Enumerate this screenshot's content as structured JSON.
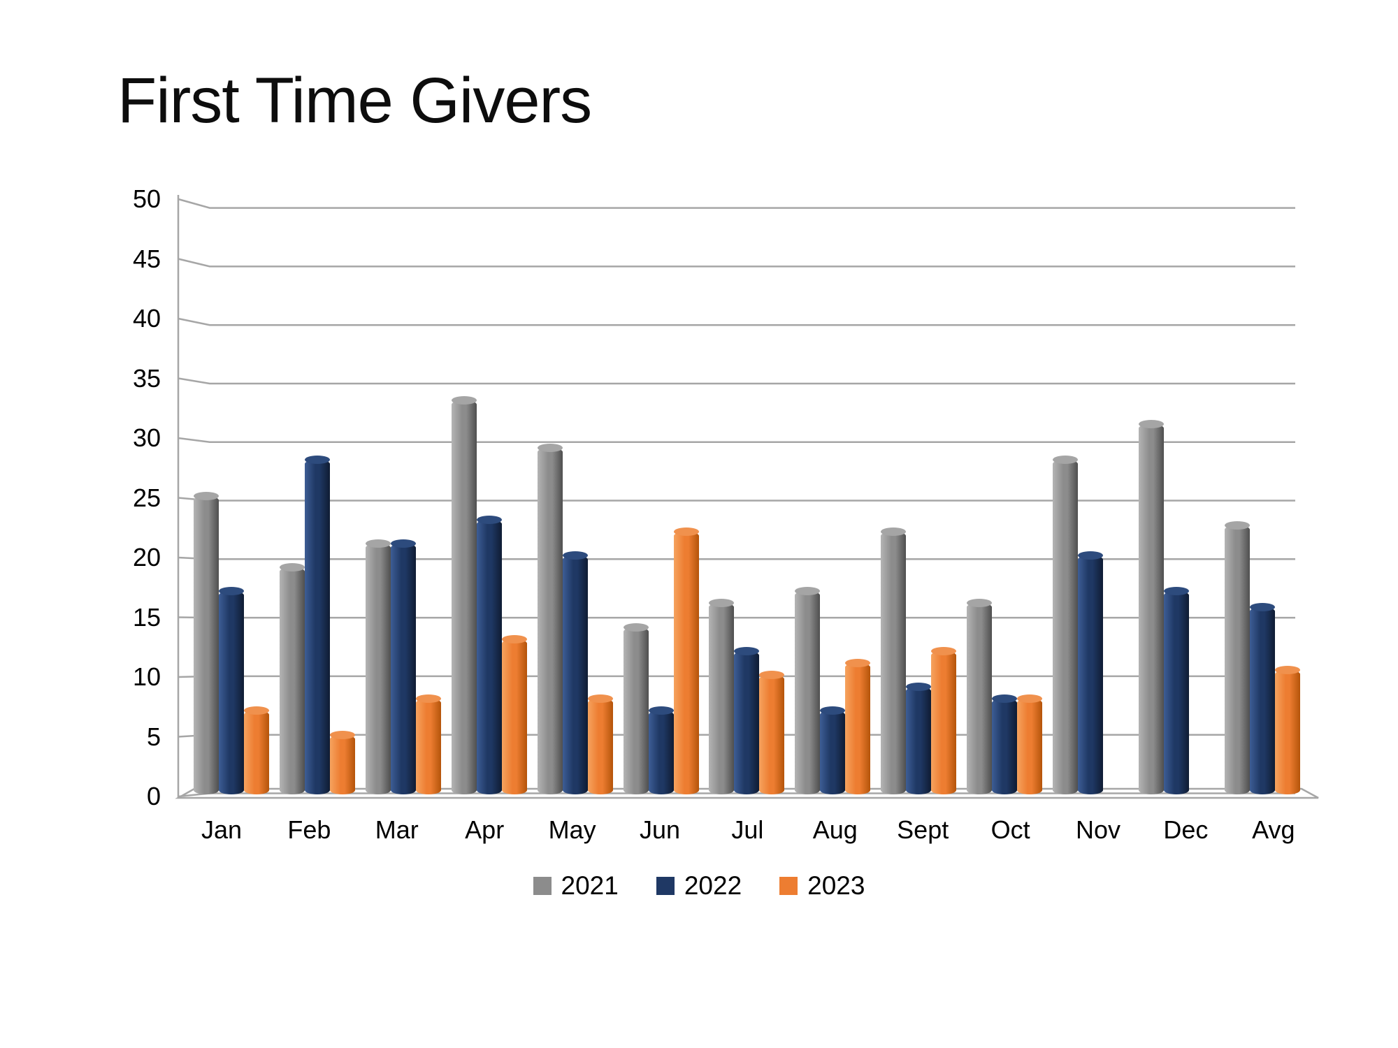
{
  "title": "First Time Givers",
  "chart_data": {
    "type": "bar",
    "title": "First Time Givers",
    "subtitle": "",
    "xlabel": "",
    "ylabel": "",
    "categories": [
      "Jan",
      "Feb",
      "Mar",
      "Apr",
      "May",
      "Jun",
      "Jul",
      "Aug",
      "Sept",
      "Oct",
      "Nov",
      "Dec",
      "Avg"
    ],
    "series": [
      {
        "name": "2021",
        "color": "#8c8c8c",
        "color_light": "#b4b4b4",
        "color_dark": "#4f4f4f",
        "cap_color": "#a5a5a5",
        "values": [
          25,
          19,
          21,
          33,
          29,
          14,
          16,
          17,
          22,
          16,
          28,
          31,
          22.5
        ]
      },
      {
        "name": "2022",
        "color": "#1f3864",
        "color_light": "#3d5d95",
        "color_dark": "#0f1c33",
        "cap_color": "#2d4b7d",
        "values": [
          17,
          28,
          21,
          23,
          20,
          7,
          12,
          7,
          9,
          8,
          20,
          17,
          15.7
        ]
      },
      {
        "name": "2023",
        "color": "#ed7d31",
        "color_light": "#f6a35f",
        "color_dark": "#b4540a",
        "cap_color": "#f0914d",
        "values": [
          7,
          5,
          8,
          13,
          8,
          22,
          10,
          11,
          12,
          8,
          null,
          null,
          10.4
        ]
      }
    ],
    "ylim": [
      0,
      50
    ],
    "ytick_step": 5,
    "yticks": [
      0,
      5,
      10,
      15,
      20,
      25,
      30,
      35,
      40,
      45,
      50
    ],
    "grid": true,
    "grid_style": "3d-back-wall",
    "legend_position": "bottom",
    "axis_color": "#a6a6a6",
    "text_color": "#000000",
    "background_color": "#ffffff"
  }
}
